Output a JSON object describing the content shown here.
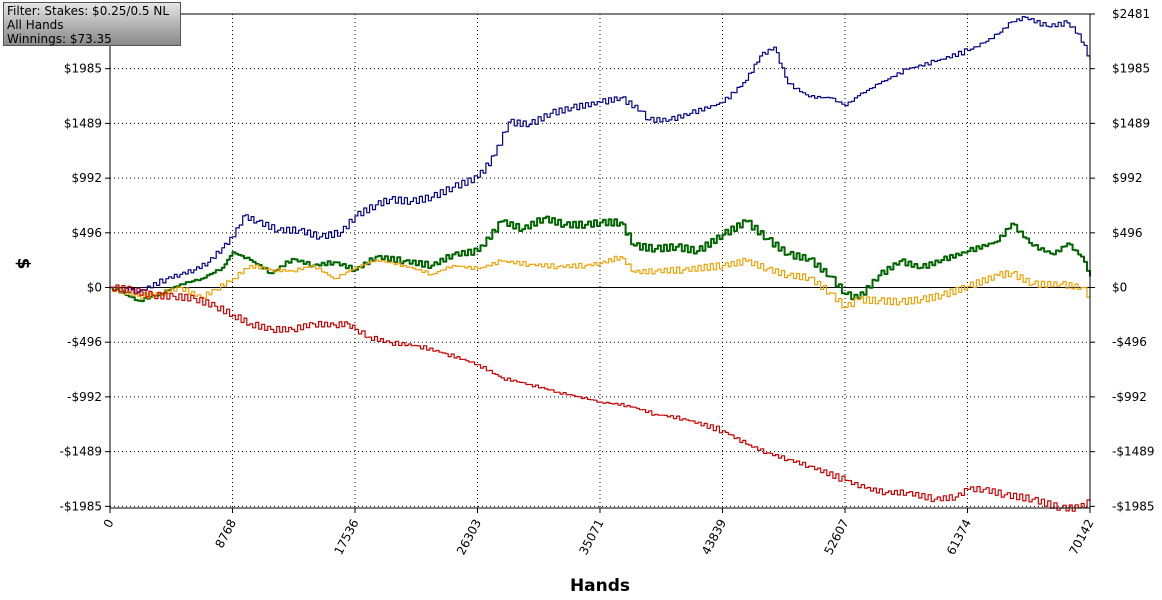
{
  "info": {
    "filter": "Filter: Stakes: $0.25/0.5 NL",
    "hands": "All Hands",
    "winnings": "Winnings: $73.35"
  },
  "chart_data": {
    "type": "line",
    "xlabel": "Hands",
    "ylabel": "$",
    "xlim": [
      0,
      70142
    ],
    "ylim": [
      -2000,
      2481
    ],
    "x_ticks": [
      0,
      8768,
      17536,
      26303,
      35071,
      43839,
      52607,
      61374,
      70142
    ],
    "y_ticks": [
      {
        "value": 2481,
        "label": "$2481"
      },
      {
        "value": 1985,
        "label": "$1985"
      },
      {
        "value": 1489,
        "label": "$1489"
      },
      {
        "value": 992,
        "label": "$992"
      },
      {
        "value": 496,
        "label": "$496"
      },
      {
        "value": 0,
        "label": "$0"
      },
      {
        "value": -496,
        "label": "-$496"
      },
      {
        "value": -992,
        "label": "-$992"
      },
      {
        "value": -1489,
        "label": "-$1489"
      },
      {
        "value": -1985,
        "label": "-$1985"
      }
    ],
    "grid": true,
    "colors": {
      "blue": "#00008b",
      "green": "#006400",
      "orange": "#f0a000",
      "red": "#cc0000",
      "zero_line": "#000000"
    },
    "series": [
      {
        "color": "blue",
        "x": [
          0,
          2000,
          4000,
          5000,
          6000,
          7000,
          8000,
          8768,
          9500,
          10500,
          12000,
          13500,
          15000,
          16500,
          17536,
          19000,
          20000,
          21500,
          23000,
          24500,
          26303,
          27500,
          28500,
          30000,
          31500,
          33000,
          35071,
          36500,
          38000,
          38500,
          40000,
          41500,
          43839,
          45500,
          46500,
          47500,
          48500,
          50000,
          51500,
          52607,
          53500,
          55000,
          57000,
          59000,
          61374,
          62500,
          63500,
          64500,
          65500,
          67000,
          68500,
          69300,
          70142
        ],
        "y": [
          0,
          -40,
          80,
          120,
          160,
          230,
          360,
          460,
          650,
          600,
          520,
          520,
          460,
          500,
          650,
          750,
          800,
          780,
          820,
          910,
          1000,
          1200,
          1500,
          1480,
          1580,
          1630,
          1680,
          1720,
          1600,
          1520,
          1520,
          1580,
          1680,
          1880,
          2100,
          2180,
          1850,
          1730,
          1720,
          1650,
          1740,
          1850,
          1980,
          2050,
          2150,
          2220,
          2300,
          2410,
          2450,
          2370,
          2400,
          2300,
          2060
        ]
      },
      {
        "color": "green",
        "x": [
          0,
          2000,
          3500,
          5000,
          6500,
          8000,
          8768,
          10000,
          11500,
          13000,
          14500,
          16000,
          17536,
          19000,
          21000,
          23000,
          24500,
          26303,
          28000,
          29500,
          31000,
          32500,
          34000,
          35071,
          36500,
          37500,
          39000,
          40500,
          42000,
          43839,
          45500,
          47000,
          48500,
          50000,
          51500,
          52607,
          53500,
          55000,
          56500,
          58000,
          59500,
          61374,
          63500,
          64500,
          66000,
          67500,
          68500,
          69500,
          70142
        ],
        "y": [
          0,
          -120,
          -60,
          30,
          80,
          180,
          320,
          250,
          130,
          260,
          200,
          230,
          160,
          280,
          240,
          200,
          300,
          330,
          600,
          530,
          630,
          570,
          570,
          590,
          590,
          380,
          350,
          370,
          330,
          480,
          600,
          440,
          300,
          260,
          100,
          -60,
          -100,
          110,
          240,
          180,
          250,
          330,
          420,
          580,
          380,
          300,
          400,
          280,
          100
        ]
      },
      {
        "color": "orange",
        "x": [
          0,
          2000,
          3500,
          5000,
          6500,
          7500,
          8768,
          10000,
          11500,
          13000,
          14500,
          16000,
          17536,
          19000,
          21000,
          23000,
          24500,
          26303,
          28000,
          30000,
          32000,
          34000,
          35071,
          36500,
          37500,
          39000,
          41000,
          43839,
          45500,
          47000,
          48500,
          50000,
          51500,
          52607,
          53500,
          55000,
          56500,
          58000,
          59500,
          61374,
          63500,
          64500,
          66000,
          68000,
          69500,
          70142
        ],
        "y": [
          0,
          -80,
          -60,
          0,
          -90,
          -20,
          80,
          200,
          160,
          150,
          200,
          80,
          180,
          250,
          200,
          120,
          200,
          170,
          240,
          210,
          190,
          200,
          220,
          280,
          140,
          150,
          160,
          200,
          240,
          170,
          110,
          90,
          -50,
          -180,
          -110,
          -120,
          -130,
          -110,
          -70,
          10,
          110,
          130,
          30,
          30,
          0,
          -90
        ]
      },
      {
        "color": "red",
        "x": [
          0,
          1500,
          3000,
          4500,
          6000,
          7500,
          8768,
          10000,
          11500,
          13000,
          14500,
          16000,
          17000,
          17536,
          18500,
          20000,
          22000,
          24000,
          26303,
          28000,
          30000,
          32000,
          33500,
          35071,
          37000,
          39000,
          41000,
          43839,
          45500,
          47000,
          48500,
          50000,
          52607,
          54000,
          55500,
          57000,
          59000,
          60500,
          61374,
          62500,
          64000,
          66000,
          68000,
          69300,
          70142
        ],
        "y": [
          0,
          -20,
          -70,
          -80,
          -100,
          -170,
          -250,
          -330,
          -380,
          -380,
          -330,
          -340,
          -330,
          -380,
          -450,
          -500,
          -530,
          -600,
          -700,
          -820,
          -880,
          -950,
          -990,
          -1040,
          -1070,
          -1150,
          -1190,
          -1300,
          -1420,
          -1500,
          -1560,
          -1620,
          -1750,
          -1820,
          -1860,
          -1860,
          -1920,
          -1900,
          -1830,
          -1830,
          -1880,
          -1920,
          -2000,
          -2000,
          -1940
        ]
      }
    ]
  }
}
